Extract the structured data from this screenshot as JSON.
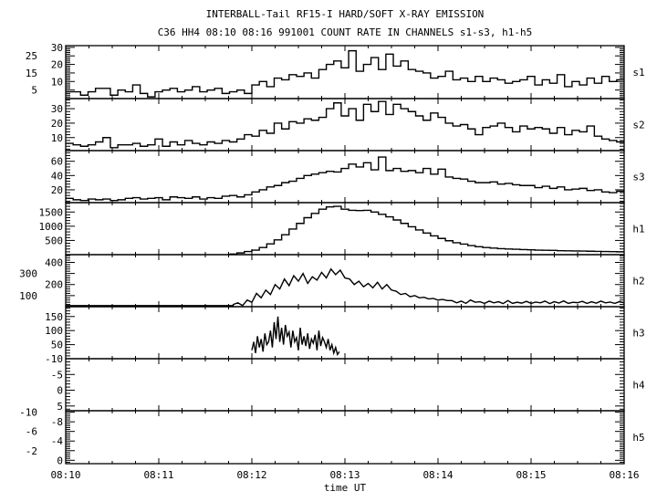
{
  "chart_data": {
    "type": "line",
    "title": "INTERBALL-Tail RF15-I HARD/SOFT X-RAY EMISSION",
    "subtitle": "C36 HH4 08:10 08:16 991001  COUNT RATE IN CHANNELS s1-s3, h1-h5",
    "xlabel": "time UT",
    "xlim_minutes_after_0810": [
      0,
      6
    ],
    "xticks": [
      "08:10",
      "08:11",
      "08:12",
      "08:13",
      "08:14",
      "08:15",
      "08:16"
    ],
    "panels": [
      {
        "name": "s1",
        "style": "step",
        "ylim": [
          0,
          31
        ],
        "yticks": [
          5,
          10,
          15,
          20,
          25,
          30
        ],
        "t0": 0,
        "dt": 0.08,
        "values": [
          4,
          4,
          2,
          4,
          6,
          6,
          2,
          5,
          4,
          8,
          3,
          1,
          4,
          5,
          6,
          4,
          5,
          7,
          4,
          5,
          6,
          3,
          4,
          5,
          3,
          8,
          10,
          7,
          12,
          11,
          14,
          13,
          15,
          12,
          17,
          20,
          22,
          18,
          28,
          16,
          20,
          24,
          17,
          26,
          19,
          22,
          17,
          16,
          15,
          12,
          13,
          16,
          11,
          12,
          10,
          13,
          10,
          12,
          11,
          9,
          10,
          11,
          13,
          8,
          11,
          9,
          14,
          7,
          10,
          8,
          12,
          9,
          13,
          10,
          11
        ]
      },
      {
        "name": "s2",
        "style": "step",
        "ylim": [
          1,
          37
        ],
        "yticks": [
          10,
          20,
          30
        ],
        "t0": 0,
        "dt": 0.08,
        "values": [
          6,
          5,
          4,
          5,
          7,
          10,
          3,
          5,
          5,
          6,
          4,
          5,
          9,
          4,
          7,
          5,
          8,
          6,
          5,
          7,
          6,
          8,
          7,
          9,
          12,
          11,
          15,
          13,
          20,
          16,
          21,
          20,
          23,
          22,
          24,
          30,
          34,
          25,
          30,
          22,
          33,
          28,
          35,
          26,
          33,
          30,
          28,
          25,
          22,
          27,
          24,
          20,
          18,
          19,
          16,
          12,
          17,
          18,
          20,
          17,
          14,
          18,
          16,
          17,
          16,
          13,
          17,
          12,
          15,
          14,
          18,
          11,
          9,
          8,
          7
        ]
      },
      {
        "name": "s3",
        "style": "step",
        "ylim": [
          2,
          75
        ],
        "yticks": [
          20,
          40,
          60
        ],
        "t0": 0,
        "dt": 0.08,
        "values": [
          8,
          6,
          5,
          7,
          6,
          7,
          5,
          6,
          8,
          9,
          7,
          8,
          9,
          6,
          10,
          9,
          8,
          10,
          7,
          9,
          8,
          11,
          12,
          10,
          13,
          17,
          20,
          24,
          26,
          30,
          32,
          36,
          40,
          42,
          44,
          46,
          45,
          50,
          56,
          52,
          58,
          48,
          66,
          47,
          50,
          46,
          47,
          44,
          50,
          42,
          49,
          38,
          36,
          35,
          32,
          30,
          30,
          31,
          28,
          29,
          27,
          26,
          26,
          23,
          25,
          22,
          24,
          20,
          21,
          22,
          19,
          20,
          17,
          16,
          18
        ]
      },
      {
        "name": "h1",
        "style": "step",
        "ylim": [
          0,
          1830
        ],
        "yticks": [
          500,
          1000,
          1500
        ],
        "t0": 1.76,
        "dt": 0.08,
        "values": [
          20,
          60,
          110,
          160,
          250,
          380,
          520,
          700,
          900,
          1100,
          1300,
          1450,
          1600,
          1680,
          1700,
          1600,
          1560,
          1550,
          1560,
          1500,
          1420,
          1330,
          1220,
          1100,
          980,
          870,
          760,
          660,
          570,
          490,
          420,
          370,
          320,
          280,
          250,
          230,
          210,
          200,
          190,
          180,
          170,
          160,
          155,
          150,
          140,
          135,
          130,
          125,
          120,
          115,
          110,
          105,
          100
        ]
      },
      {
        "name": "h2",
        "style": "line",
        "ylim": [
          0,
          470
        ],
        "yticks": [
          100,
          200,
          300,
          400
        ],
        "t0": 1.8,
        "dt": 0.05,
        "baseline_value": 10,
        "values": [
          20,
          35,
          10,
          60,
          40,
          120,
          80,
          150,
          110,
          200,
          160,
          250,
          190,
          280,
          230,
          300,
          210,
          270,
          240,
          310,
          260,
          340,
          290,
          330,
          260,
          250,
          200,
          230,
          180,
          210,
          170,
          220,
          160,
          200,
          150,
          140,
          110,
          120,
          90,
          100,
          80,
          85,
          70,
          75,
          60,
          65,
          55,
          55,
          35,
          50,
          30,
          60,
          40,
          45,
          30,
          50,
          35,
          45,
          28,
          55,
          30,
          40,
          32,
          48,
          30,
          42,
          35,
          50,
          28,
          45,
          33,
          52,
          30,
          40,
          36,
          48,
          30,
          44,
          32,
          50,
          35,
          42,
          30,
          46,
          34
        ]
      },
      {
        "name": "h3",
        "style": "line",
        "ylim": [
          0,
          185
        ],
        "yticks": [
          50,
          100,
          150
        ],
        "t0": 2.0,
        "dt": 0.02,
        "values": [
          30,
          60,
          20,
          80,
          40,
          70,
          25,
          90,
          50,
          60,
          100,
          40,
          130,
          70,
          150,
          60,
          110,
          50,
          120,
          80,
          95,
          40,
          100,
          60,
          75,
          30,
          110,
          50,
          80,
          45,
          90,
          35,
          70,
          55,
          85,
          30,
          100,
          45,
          75,
          60,
          40,
          70,
          30,
          50,
          20,
          40,
          15,
          25
        ]
      },
      {
        "name": "h4",
        "style": "line",
        "ylim": [
          -10,
          6.5
        ],
        "inverted": true,
        "yticks": [
          -10,
          -5,
          0,
          5
        ],
        "t0": 0,
        "dt": 0.1,
        "values": []
      },
      {
        "name": "h5",
        "style": "line",
        "ylim": [
          -10.3,
          0.7
        ],
        "inverted": true,
        "yticks": [
          -10,
          -8,
          -6,
          -4,
          -2,
          0
        ],
        "t0": 0,
        "dt": 0.1,
        "values": []
      }
    ]
  }
}
